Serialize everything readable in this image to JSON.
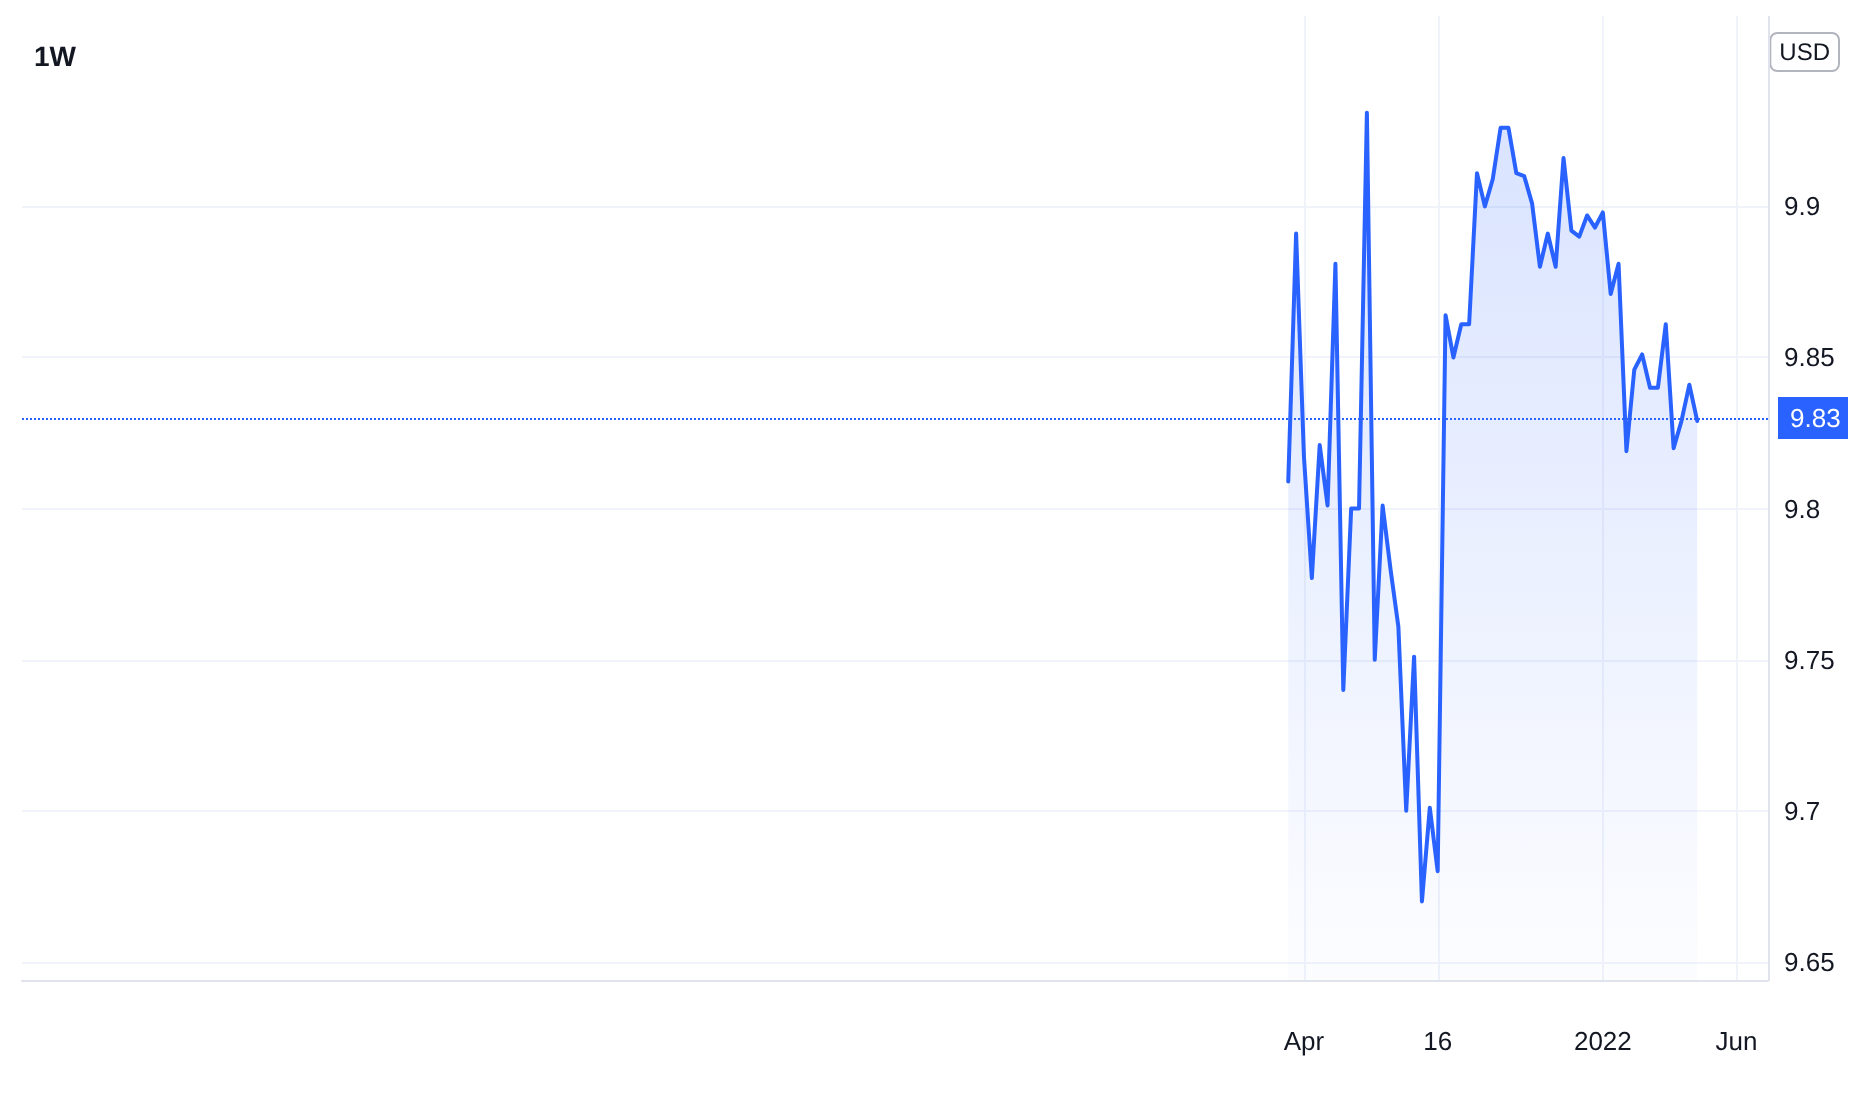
{
  "chart_data": {
    "type": "area",
    "title": "1W",
    "ylabel": "USD",
    "categories": [
      null,
      null,
      null,
      null,
      null,
      null,
      null,
      null,
      null,
      null,
      null,
      null,
      null,
      null,
      null,
      null,
      null,
      null,
      null,
      null,
      null,
      null,
      null,
      null,
      null,
      null,
      null,
      null,
      null,
      null,
      null,
      null,
      null,
      null,
      null,
      null,
      null,
      null,
      null,
      null,
      null,
      null,
      null,
      null,
      null,
      null,
      null,
      null,
      null,
      null,
      null,
      null,
      null,
      null,
      null,
      null,
      null,
      null,
      null,
      null,
      null,
      null,
      null,
      null,
      null,
      null,
      null,
      null,
      null,
      null,
      null,
      null,
      null,
      null,
      null,
      null,
      null,
      null,
      null,
      null,
      null,
      null,
      null,
      null,
      null,
      null,
      null,
      null,
      null,
      null,
      null,
      null,
      null,
      null,
      null,
      null,
      null,
      null,
      null,
      null,
      null,
      null,
      null,
      null,
      null,
      null,
      null,
      null,
      null,
      null,
      null,
      null,
      null,
      null,
      null,
      null,
      null,
      null,
      null,
      null,
      null,
      null,
      null,
      null,
      null,
      null,
      null,
      null,
      null,
      null,
      null,
      null,
      null,
      null,
      null,
      null,
      null,
      null,
      null,
      null,
      null,
      null,
      null,
      null,
      null,
      null,
      null,
      null,
      null,
      null,
      null,
      null,
      null,
      null,
      null,
      null,
      null,
      null,
      null,
      null,
      null,
      null,
      null,
      "Apr",
      null,
      null,
      null,
      null,
      null,
      null,
      null,
      null,
      null,
      null,
      null,
      null,
      null,
      null,
      null,
      null,
      "16",
      null,
      null,
      null,
      null,
      null,
      null,
      null,
      null,
      null,
      null,
      null,
      null,
      null,
      null,
      null,
      null,
      null,
      null,
      null,
      null,
      "2022",
      null,
      null,
      null,
      null,
      null,
      null,
      null,
      null,
      null,
      null,
      null,
      null,
      null,
      null,
      null,
      null,
      "Jun",
      null,
      null,
      null,
      null
    ],
    "series": [
      {
        "color": "#2962ff",
        "values": [
          null,
          null,
          null,
          null,
          null,
          null,
          null,
          null,
          null,
          null,
          null,
          null,
          null,
          null,
          null,
          null,
          null,
          null,
          null,
          null,
          null,
          null,
          null,
          null,
          null,
          null,
          null,
          null,
          null,
          null,
          null,
          null,
          null,
          null,
          null,
          null,
          null,
          null,
          null,
          null,
          null,
          null,
          null,
          null,
          null,
          null,
          null,
          null,
          null,
          null,
          null,
          null,
          null,
          null,
          null,
          null,
          null,
          null,
          null,
          null,
          null,
          null,
          null,
          null,
          null,
          null,
          null,
          null,
          null,
          null,
          null,
          null,
          null,
          null,
          null,
          null,
          null,
          null,
          null,
          null,
          null,
          null,
          null,
          null,
          null,
          null,
          null,
          null,
          null,
          null,
          null,
          null,
          null,
          null,
          null,
          null,
          null,
          null,
          null,
          null,
          null,
          null,
          null,
          null,
          null,
          null,
          null,
          null,
          null,
          null,
          null,
          null,
          null,
          null,
          null,
          null,
          null,
          null,
          null,
          null,
          null,
          null,
          null,
          null,
          null,
          null,
          null,
          null,
          null,
          null,
          null,
          null,
          null,
          null,
          null,
          null,
          null,
          null,
          null,
          null,
          null,
          null,
          null,
          null,
          null,
          null,
          null,
          null,
          null,
          null,
          null,
          null,
          null,
          null,
          null,
          null,
          null,
          null,
          null,
          null,
          null,
          9.809,
          9.891,
          9.817,
          9.777,
          9.821,
          9.801,
          9.881,
          9.74,
          9.8,
          9.8,
          9.931,
          9.75,
          9.801,
          9.78,
          9.761,
          9.7,
          9.751,
          9.67,
          9.701,
          9.68,
          9.864,
          9.85,
          9.861,
          9.861,
          9.911,
          9.9,
          9.909,
          9.926,
          9.926,
          9.911,
          9.91,
          9.901,
          9.88,
          9.891,
          9.88,
          9.916,
          9.892,
          9.89,
          9.897,
          9.893,
          9.898,
          9.871,
          9.881,
          9.819,
          9.846,
          9.851,
          9.84,
          9.84,
          9.861,
          9.82,
          9.829,
          9.841,
          9.829,
          null,
          null,
          null,
          null,
          null,
          null,
          null,
          null,
          null
        ]
      }
    ],
    "ylim": [
      9.644,
      9.963
    ],
    "yticks": [
      9.65,
      9.7,
      9.75,
      9.8,
      9.85,
      9.9
    ],
    "ref_lines": [
      {
        "axis": "y",
        "value": 9.83,
        "label": "9.83",
        "color": "#2962ff",
        "line_style": "dotted"
      }
    ],
    "grid": true,
    "marker": "none",
    "line_style": "solid"
  }
}
